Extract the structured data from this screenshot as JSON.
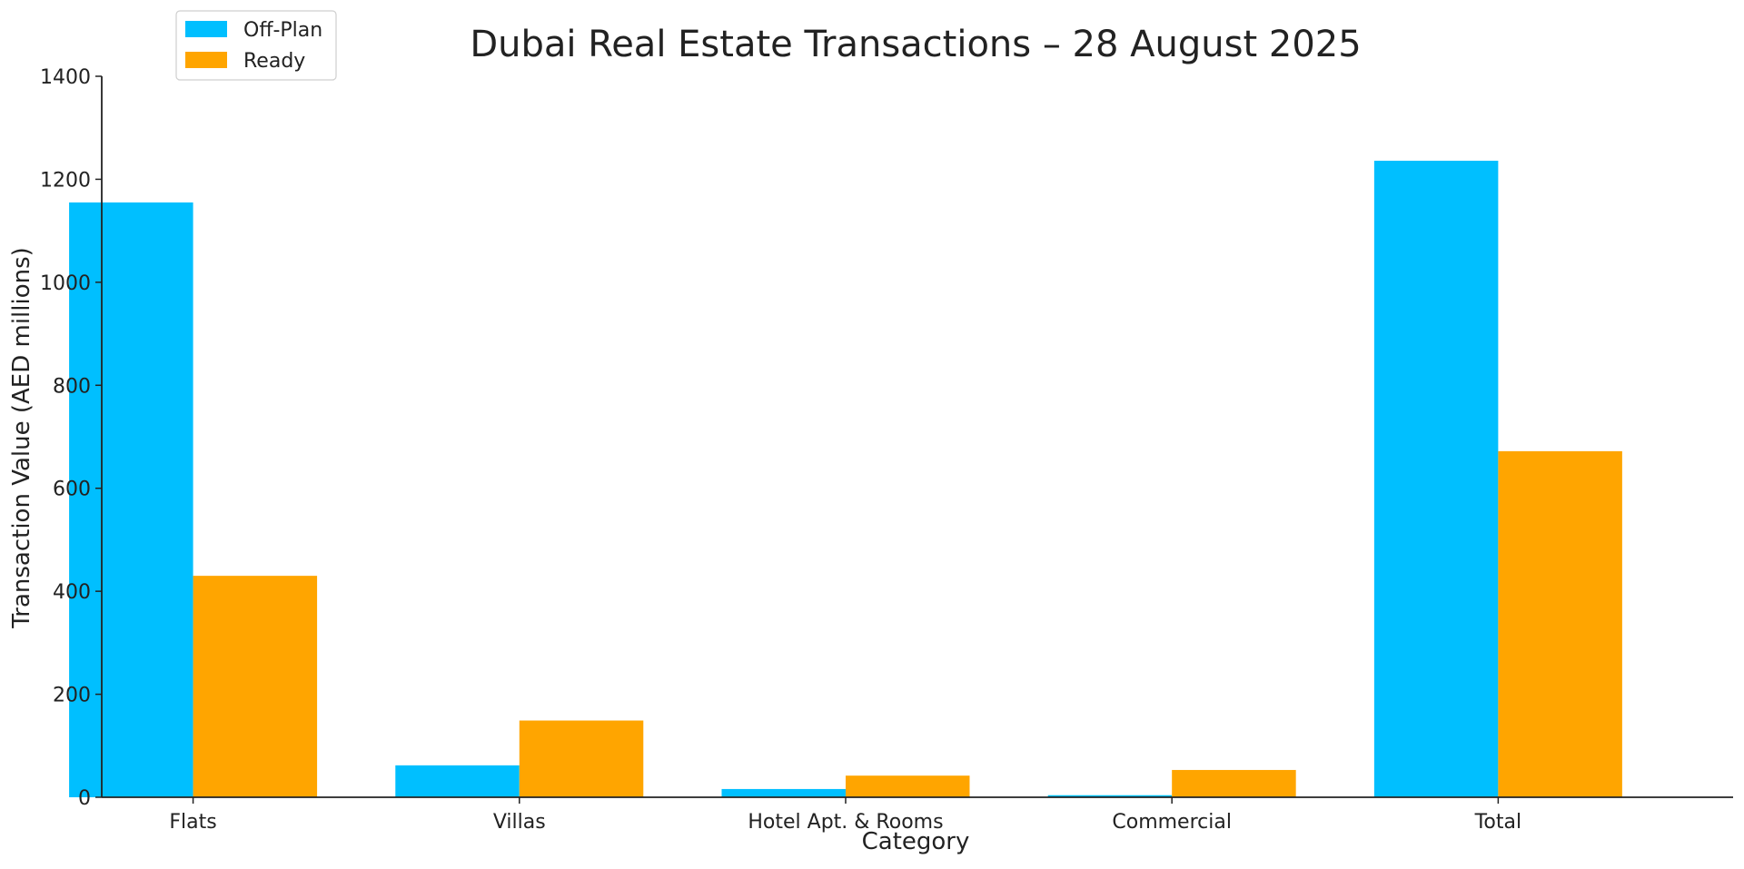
{
  "chart_data": {
    "type": "bar",
    "title": "Dubai Real Estate Transactions – 28 August 2025",
    "xlabel": "Category",
    "ylabel": "Transaction Value (AED millions)",
    "categories": [
      "Flats",
      "Villas",
      "Hotel Apt. & Rooms",
      "Commercial",
      "Total"
    ],
    "series": [
      {
        "name": "Off-Plan",
        "color": "#00BFFF",
        "values": [
          1155,
          62,
          16,
          4,
          1236
        ]
      },
      {
        "name": "Ready",
        "color": "#FFA500",
        "values": [
          430,
          149,
          42,
          53,
          672
        ]
      }
    ],
    "ylim": [
      0,
      1400
    ],
    "yticks": [
      0,
      200,
      400,
      600,
      800,
      1000,
      1200,
      1400
    ],
    "grid": false,
    "legend_position": "top-left"
  }
}
